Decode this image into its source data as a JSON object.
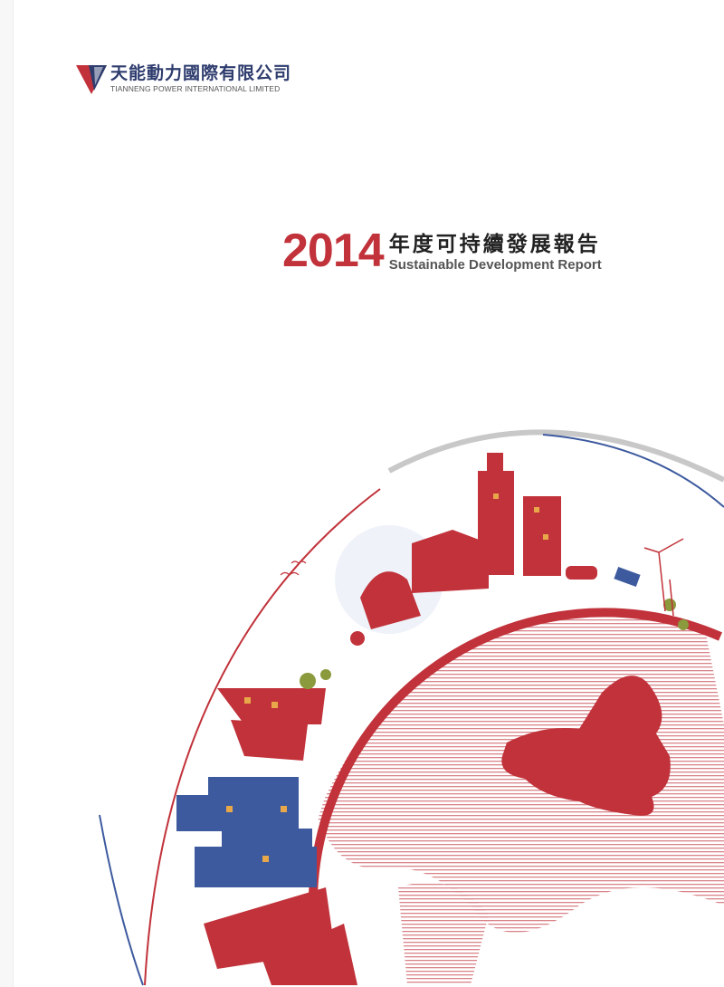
{
  "company": {
    "name_cn": "天能動力國際有限公司",
    "name_en": "TIANNENG POWER INTERNATIONAL LIMITED"
  },
  "report": {
    "year": "2014",
    "title_cn": "年度可持續發展報告",
    "title_en": "Sustainable Development Report"
  },
  "colors": {
    "brand_red": "#c1323a",
    "navy": "#2e3c6e",
    "blue": "#3d5a9e",
    "gray_arc": "#c8c8c8"
  }
}
